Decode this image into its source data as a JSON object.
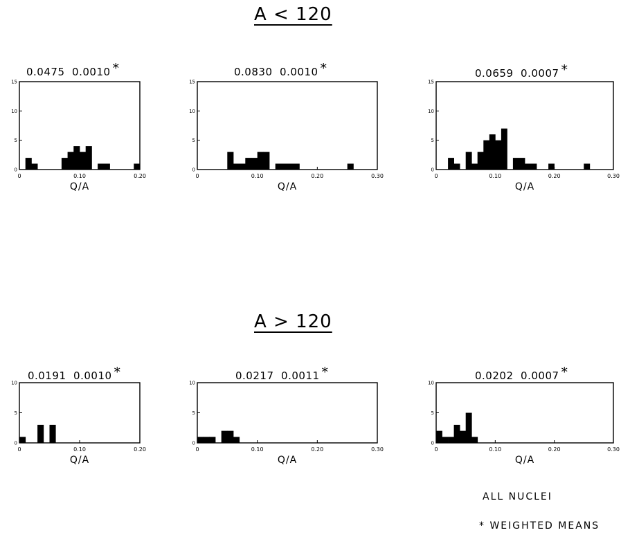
{
  "sections": [
    {
      "title": "A < 120"
    },
    {
      "title": "A > 120"
    }
  ],
  "footnotes": {
    "all_nuclei": "ALL NUCLEI",
    "weighted_means": "* WEIGHTED MEANS"
  },
  "chart_data": [
    {
      "type": "bar",
      "section": "A < 120",
      "header_mean": "0.0475",
      "header_error": "0.0010",
      "header_mark": "*",
      "xlabel": "Q/A",
      "xlim": [
        0,
        0.2
      ],
      "ylim": [
        0,
        15
      ],
      "xticks": [
        0,
        0.1,
        0.2
      ],
      "xtick_labels": [
        "0",
        "0.10",
        "0.20"
      ],
      "yticks": [
        0,
        5,
        10,
        15
      ],
      "ytick_labels": [
        "0",
        "5",
        "10",
        "15"
      ],
      "bin_width": 0.01,
      "bins": [
        {
          "x": 0.01,
          "y": 2
        },
        {
          "x": 0.02,
          "y": 1
        },
        {
          "x": 0.07,
          "y": 2
        },
        {
          "x": 0.08,
          "y": 3
        },
        {
          "x": 0.09,
          "y": 4
        },
        {
          "x": 0.1,
          "y": 3
        },
        {
          "x": 0.11,
          "y": 4
        },
        {
          "x": 0.13,
          "y": 1
        },
        {
          "x": 0.14,
          "y": 1
        },
        {
          "x": 0.19,
          "y": 1
        }
      ]
    },
    {
      "type": "bar",
      "section": "A < 120",
      "header_mean": "0.0830",
      "header_error": "0.0010",
      "header_mark": "*",
      "xlabel": "Q/A",
      "xlim": [
        0,
        0.3
      ],
      "ylim": [
        0,
        15
      ],
      "xticks": [
        0,
        0.1,
        0.2,
        0.3
      ],
      "xtick_labels": [
        "0",
        "0.10",
        "0.20",
        "0.30"
      ],
      "yticks": [
        0,
        5,
        10,
        15
      ],
      "ytick_labels": [
        "0",
        "5",
        "10",
        "15"
      ],
      "bin_width": 0.01,
      "bins": [
        {
          "x": 0.05,
          "y": 3
        },
        {
          "x": 0.06,
          "y": 1
        },
        {
          "x": 0.07,
          "y": 1
        },
        {
          "x": 0.08,
          "y": 2
        },
        {
          "x": 0.09,
          "y": 2
        },
        {
          "x": 0.1,
          "y": 3
        },
        {
          "x": 0.11,
          "y": 3
        },
        {
          "x": 0.13,
          "y": 1
        },
        {
          "x": 0.14,
          "y": 1
        },
        {
          "x": 0.15,
          "y": 1
        },
        {
          "x": 0.16,
          "y": 1
        },
        {
          "x": 0.25,
          "y": 1
        }
      ]
    },
    {
      "type": "bar",
      "section": "A < 120",
      "header_mean": "0.0659",
      "header_error": "0.0007",
      "header_mark": "*",
      "xlabel": "Q/A",
      "xlim": [
        0,
        0.3
      ],
      "ylim": [
        0,
        15
      ],
      "xticks": [
        0,
        0.1,
        0.2,
        0.3
      ],
      "xtick_labels": [
        "0",
        "0.10",
        "0.20",
        "0.30"
      ],
      "yticks": [
        0,
        5,
        10,
        15
      ],
      "ytick_labels": [
        "0",
        "5",
        "10",
        "15"
      ],
      "bin_width": 0.01,
      "bins": [
        {
          "x": 0.02,
          "y": 2
        },
        {
          "x": 0.03,
          "y": 1
        },
        {
          "x": 0.05,
          "y": 3
        },
        {
          "x": 0.06,
          "y": 1
        },
        {
          "x": 0.07,
          "y": 3
        },
        {
          "x": 0.08,
          "y": 5
        },
        {
          "x": 0.09,
          "y": 6
        },
        {
          "x": 0.1,
          "y": 5
        },
        {
          "x": 0.11,
          "y": 7
        },
        {
          "x": 0.13,
          "y": 2
        },
        {
          "x": 0.14,
          "y": 2
        },
        {
          "x": 0.15,
          "y": 1
        },
        {
          "x": 0.16,
          "y": 1
        },
        {
          "x": 0.19,
          "y": 1
        },
        {
          "x": 0.25,
          "y": 1
        }
      ]
    },
    {
      "type": "bar",
      "section": "A > 120",
      "header_mean": "0.0191",
      "header_error": "0.0010",
      "header_mark": "*",
      "xlabel": "Q/A",
      "xlim": [
        0,
        0.2
      ],
      "ylim": [
        0,
        10
      ],
      "xticks": [
        0,
        0.1,
        0.2
      ],
      "xtick_labels": [
        "0",
        "0.10",
        "0.20"
      ],
      "yticks": [
        0,
        5,
        10
      ],
      "ytick_labels": [
        "0",
        "5",
        "10"
      ],
      "bin_width": 0.01,
      "bins": [
        {
          "x": 0.0,
          "y": 1
        },
        {
          "x": 0.03,
          "y": 3
        },
        {
          "x": 0.05,
          "y": 3
        }
      ]
    },
    {
      "type": "bar",
      "section": "A > 120",
      "header_mean": "0.0217",
      "header_error": "0.0011",
      "header_mark": "*",
      "xlabel": "Q/A",
      "xlim": [
        0,
        0.3
      ],
      "ylim": [
        0,
        10
      ],
      "xticks": [
        0,
        0.1,
        0.2,
        0.3
      ],
      "xtick_labels": [
        "0",
        "0.10",
        "0.20",
        "0.30"
      ],
      "yticks": [
        0,
        5,
        10
      ],
      "ytick_labels": [
        "0",
        "5",
        "10"
      ],
      "bin_width": 0.01,
      "bins": [
        {
          "x": 0.0,
          "y": 1
        },
        {
          "x": 0.01,
          "y": 1
        },
        {
          "x": 0.02,
          "y": 1
        },
        {
          "x": 0.04,
          "y": 2
        },
        {
          "x": 0.05,
          "y": 2
        },
        {
          "x": 0.06,
          "y": 1
        }
      ]
    },
    {
      "type": "bar",
      "section": "A > 120",
      "header_mean": "0.0202",
      "header_error": "0.0007",
      "header_mark": "*",
      "xlabel": "Q/A",
      "xlim": [
        0,
        0.3
      ],
      "ylim": [
        0,
        10
      ],
      "xticks": [
        0,
        0.1,
        0.2,
        0.3
      ],
      "xtick_labels": [
        "0",
        "0.10",
        "0.20",
        "0.30"
      ],
      "yticks": [
        0,
        5,
        10
      ],
      "ytick_labels": [
        "0",
        "5",
        "10"
      ],
      "bin_width": 0.01,
      "bins": [
        {
          "x": 0.0,
          "y": 2
        },
        {
          "x": 0.01,
          "y": 1
        },
        {
          "x": 0.02,
          "y": 1
        },
        {
          "x": 0.03,
          "y": 3
        },
        {
          "x": 0.04,
          "y": 2
        },
        {
          "x": 0.05,
          "y": 5
        },
        {
          "x": 0.06,
          "y": 1
        }
      ]
    }
  ]
}
